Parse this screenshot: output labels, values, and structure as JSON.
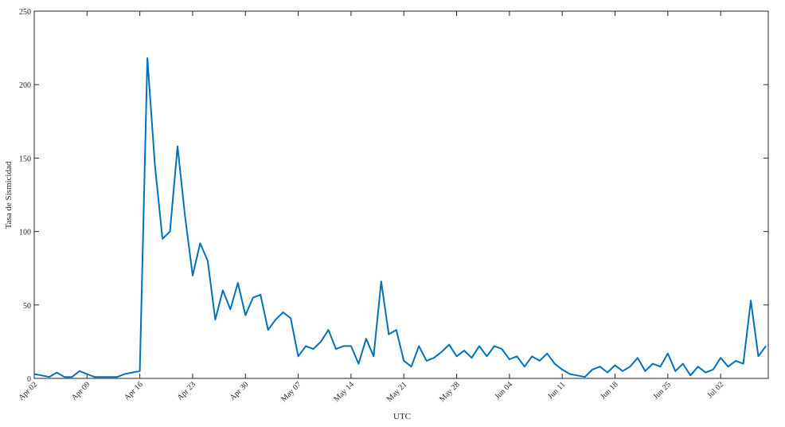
{
  "chart_data": {
    "type": "line",
    "x_label": "UTC",
    "y_label": "Tasa de Sismicidad",
    "x": [
      "Apr 02",
      "Apr 03",
      "Apr 04",
      "Apr 05",
      "Apr 06",
      "Apr 07",
      "Apr 08",
      "Apr 09",
      "Apr 10",
      "Apr 11",
      "Apr 12",
      "Apr 13",
      "Apr 14",
      "Apr 15",
      "Apr 16",
      "Apr 17",
      "Apr 18",
      "Apr 19",
      "Apr 20",
      "Apr 21",
      "Apr 22",
      "Apr 23",
      "Apr 24",
      "Apr 25",
      "Apr 26",
      "Apr 27",
      "Apr 28",
      "Apr 29",
      "Apr 30",
      "May 01",
      "May 02",
      "May 03",
      "May 04",
      "May 05",
      "May 06",
      "May 07",
      "May 08",
      "May 09",
      "May 10",
      "May 11",
      "May 12",
      "May 13",
      "May 14",
      "May 15",
      "May 16",
      "May 17",
      "May 18",
      "May 19",
      "May 20",
      "May 21",
      "May 22",
      "May 23",
      "May 24",
      "May 25",
      "May 26",
      "May 27",
      "May 28",
      "May 29",
      "May 30",
      "May 31",
      "Jun 01",
      "Jun 02",
      "Jun 03",
      "Jun 04",
      "Jun 05",
      "Jun 06",
      "Jun 07",
      "Jun 08",
      "Jun 09",
      "Jun 10",
      "Jun 11",
      "Jun 12",
      "Jun 13",
      "Jun 14",
      "Jun 15",
      "Jun 16",
      "Jun 17",
      "Jun 18",
      "Jun 19",
      "Jun 20",
      "Jun 21",
      "Jun 22",
      "Jun 23",
      "Jun 24",
      "Jun 25",
      "Jun 26",
      "Jun 27",
      "Jun 28",
      "Jun 29",
      "Jun 30",
      "Jul 01",
      "Jul 02",
      "Jul 03",
      "Jul 04",
      "Jul 05",
      "Jul 06",
      "Jul 07",
      "Jul 08"
    ],
    "xticks": [
      "Apr 02",
      "Apr 09",
      "Apr 16",
      "Apr 23",
      "Apr 30",
      "May 07",
      "May 14",
      "May 21",
      "May 28",
      "Jun 04",
      "Jun 11",
      "Jun 18",
      "Jun 25",
      "Jul 02"
    ],
    "series": [
      {
        "color": "#0072bd",
        "values": [
          3,
          2,
          1,
          4,
          1,
          1,
          5,
          3,
          1,
          1,
          1,
          1,
          3,
          4,
          5,
          218,
          145,
          95,
          100,
          158,
          110,
          70,
          92,
          80,
          40,
          60,
          47,
          65,
          43,
          55,
          57,
          33,
          40,
          45,
          41,
          15,
          22,
          20,
          25,
          33,
          20,
          22,
          22,
          10,
          27,
          15,
          66,
          30,
          33,
          12,
          8,
          22,
          12,
          14,
          18,
          23,
          15,
          19,
          14,
          22,
          15,
          22,
          20,
          13,
          15,
          8,
          15,
          12,
          17,
          10,
          6,
          3,
          2,
          1,
          6,
          8,
          4,
          9,
          5,
          8,
          14,
          5,
          10,
          8,
          17,
          5,
          10,
          2,
          8,
          4,
          6,
          14,
          8,
          12,
          10,
          53,
          15,
          22
        ]
      }
    ],
    "ylim": [
      0,
      250
    ],
    "yticks": [
      0,
      50,
      100,
      150,
      200,
      250
    ]
  }
}
